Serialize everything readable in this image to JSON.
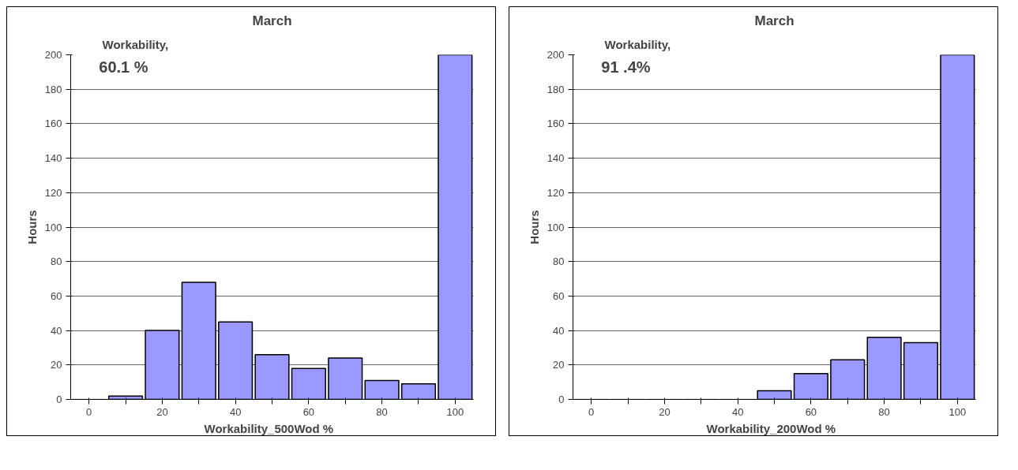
{
  "chart_data": [
    {
      "type": "bar",
      "title": "March",
      "xlabel": "Workability_500Wod   %",
      "ylabel": "Hours",
      "annotations": [
        "Workability,",
        "60.1 %"
      ],
      "categories": [
        "0",
        null,
        "20",
        null,
        "40",
        null,
        "60",
        null,
        "80",
        null,
        "100"
      ],
      "values": [
        0,
        2,
        40,
        68,
        45,
        26,
        18,
        24,
        11,
        9,
        200
      ],
      "color": "#9999ff",
      "ylim": [
        0,
        200
      ],
      "yticks": [
        0,
        20,
        40,
        60,
        80,
        100,
        120,
        140,
        160,
        180,
        200
      ],
      "grid": "y"
    },
    {
      "type": "bar",
      "title": "March",
      "xlabel": "Workability_200Wod   %",
      "ylabel": "Hours",
      "annotations": [
        "Workability,",
        "91 .4%"
      ],
      "categories": [
        "0",
        null,
        "20",
        null,
        "40",
        null,
        "60",
        null,
        "80",
        null,
        "100"
      ],
      "values": [
        0,
        0,
        0,
        0,
        0,
        5,
        15,
        23,
        36,
        33,
        200
      ],
      "color": "#9999ff",
      "ylim": [
        0,
        200
      ],
      "yticks": [
        0,
        20,
        40,
        60,
        80,
        100,
        120,
        140,
        160,
        180,
        200
      ],
      "grid": "y"
    }
  ]
}
